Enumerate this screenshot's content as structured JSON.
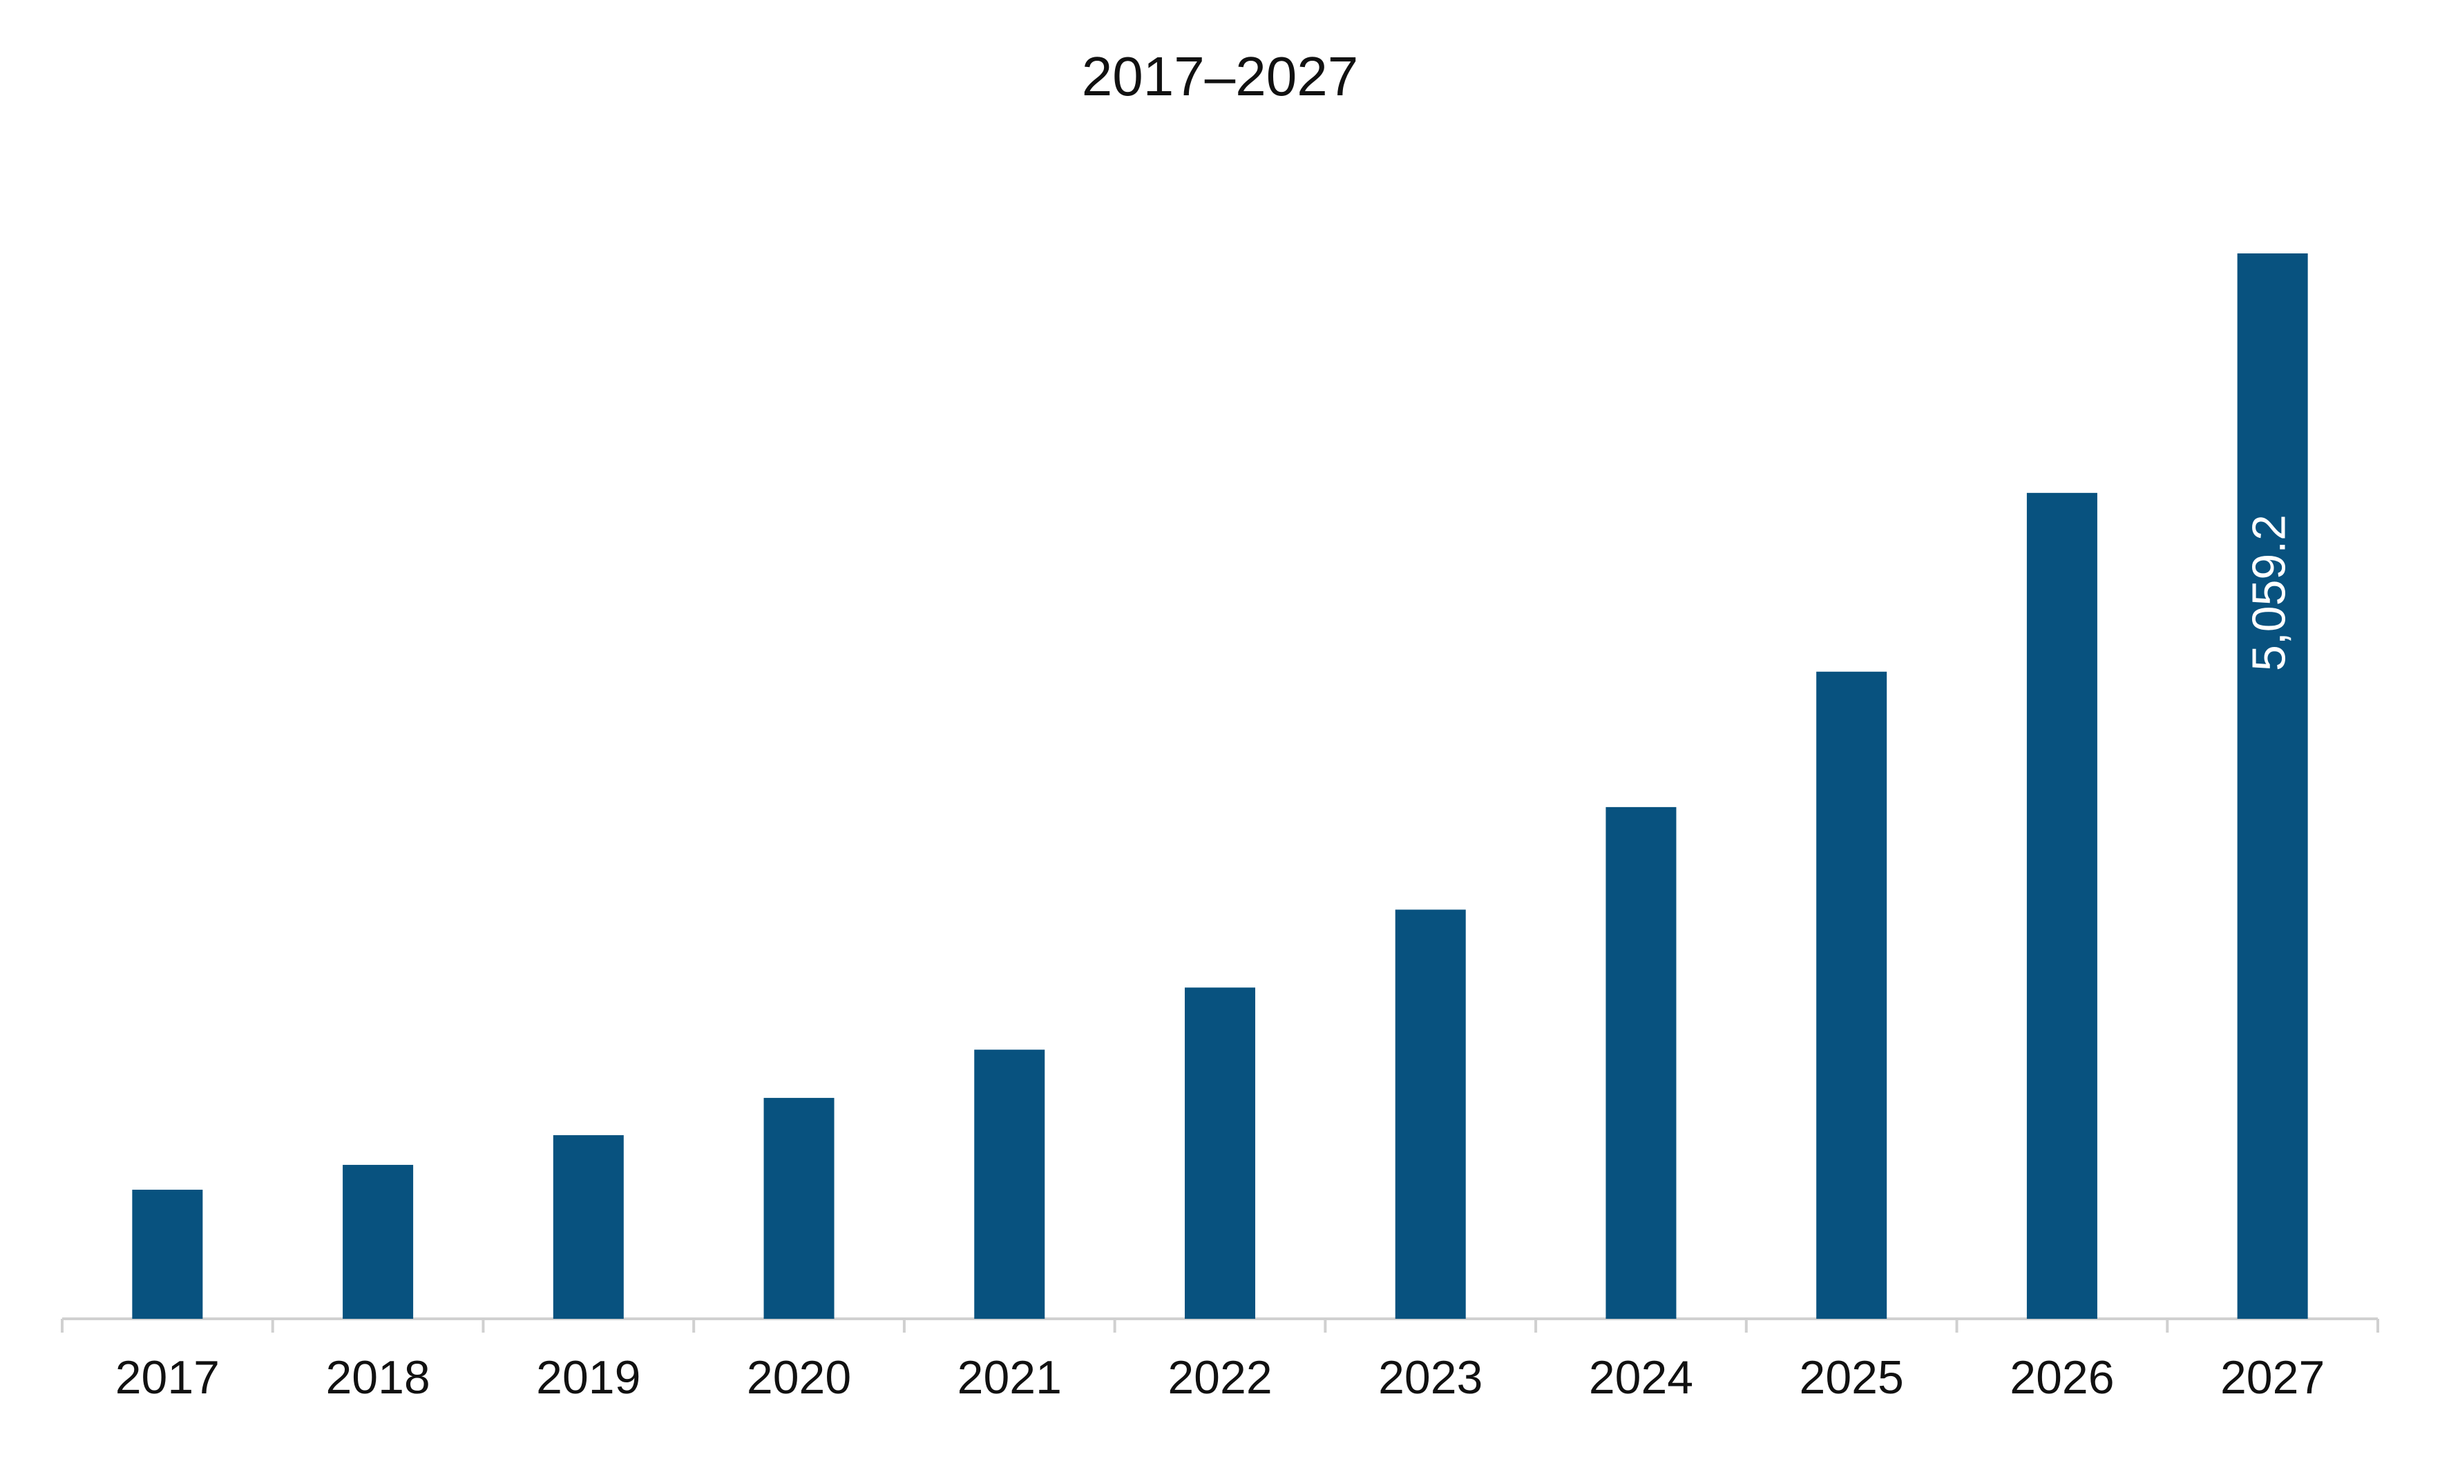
{
  "chart_data": {
    "type": "bar",
    "title": "2017–2027",
    "categories": [
      "2017",
      "2018",
      "2019",
      "2020",
      "2021",
      "2022",
      "2023",
      "2024",
      "2025",
      "2026",
      "2027"
    ],
    "values": [
      613,
      731,
      872,
      1049,
      1278,
      1573,
      1943,
      2430,
      3073,
      3922,
      5059.2
    ],
    "value_labels": [
      null,
      null,
      null,
      null,
      null,
      null,
      null,
      null,
      null,
      null,
      "5,059.2"
    ],
    "color": "#08527f"
  }
}
